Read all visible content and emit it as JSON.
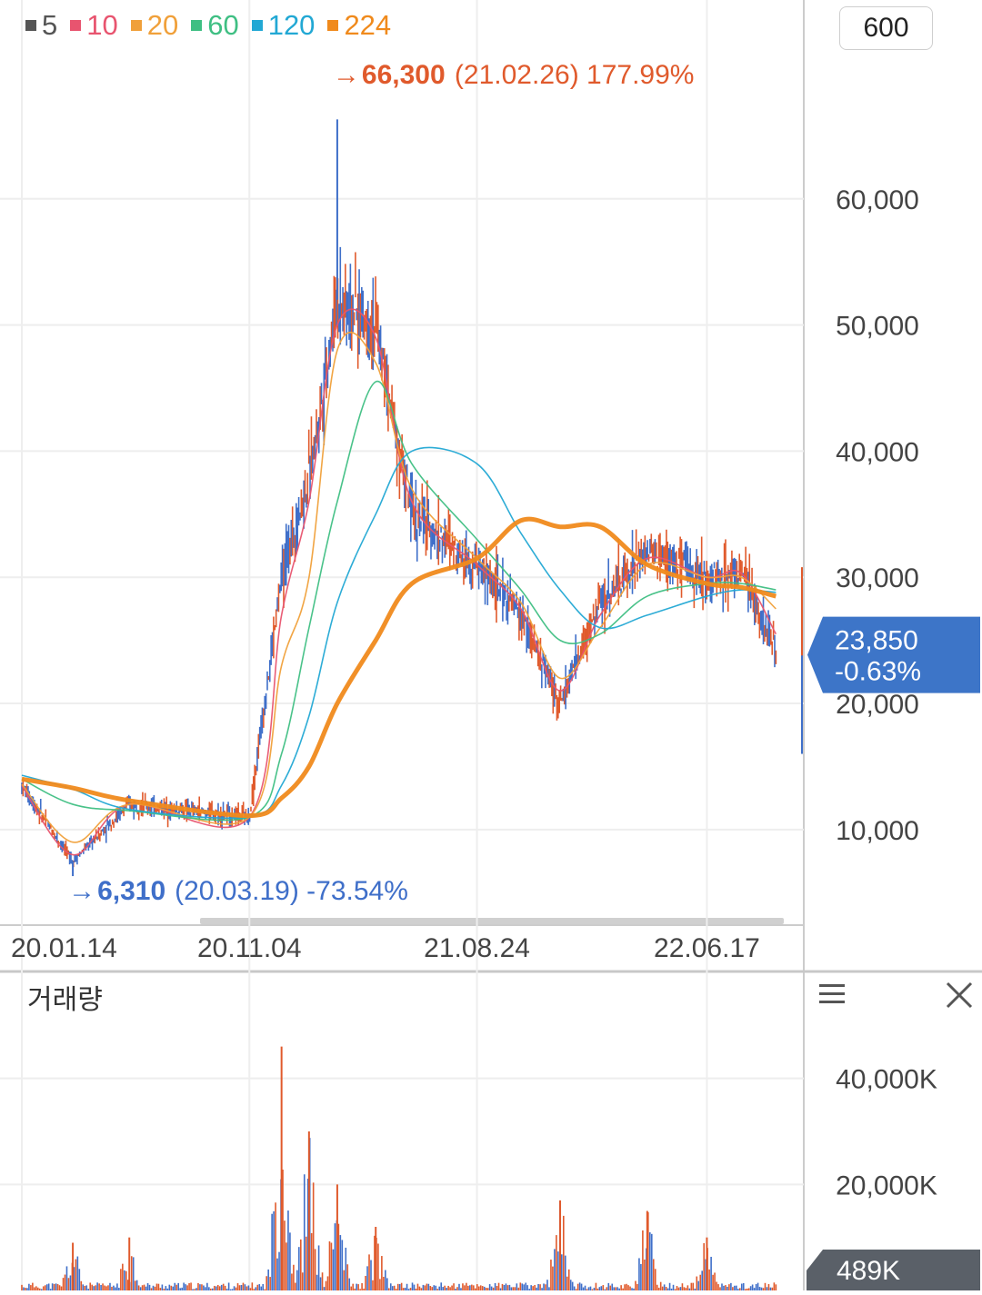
{
  "period_button": "600",
  "volume_title": "거래량",
  "legend": [
    {
      "label": "5",
      "color": "#555555"
    },
    {
      "label": "10",
      "color": "#e8546f"
    },
    {
      "label": "20",
      "color": "#f0a03a"
    },
    {
      "label": "60",
      "color": "#3fbf83"
    },
    {
      "label": "120",
      "color": "#22a8d4"
    },
    {
      "label": "224",
      "color": "#f08a1c"
    }
  ],
  "colors": {
    "up": "#e05a2c",
    "down": "#3f6fc9",
    "price_tag_bg": "#3d75c8",
    "volume_tag_bg": "#5a6068",
    "grid": "#eeeeee",
    "axis_text": "#444444"
  },
  "chart_data": [
    {
      "type": "line",
      "subtype": "candlestick_with_moving_averages",
      "x_tick_labels": [
        "20.01.14",
        "20.11.04",
        "21.08.24",
        "22.06.17"
      ],
      "y_tick_labels": [
        "10,000",
        "20,000",
        "30,000",
        "40,000",
        "50,000",
        "60,000"
      ],
      "ylim": [
        3000,
        70000
      ],
      "grid": true,
      "series": [
        {
          "name": "5",
          "x": [
            "20.01.14",
            "20.03.19",
            "20.06.01",
            "20.11.04",
            "20.12.15",
            "21.01.20",
            "21.02.26",
            "21.04.15",
            "21.06.01",
            "21.08.24",
            "21.10.20",
            "21.12.10",
            "22.02.01",
            "22.04.01",
            "22.06.17",
            "22.08.01",
            "22.09.15"
          ],
          "values": [
            13500,
            7500,
            12000,
            11000,
            30000,
            38000,
            52000,
            50000,
            35000,
            31000,
            27000,
            20000,
            28000,
            32000,
            30000,
            30500,
            24000
          ]
        },
        {
          "name": "10",
          "x": [
            "20.01.14",
            "20.03.19",
            "20.06.01",
            "20.11.04",
            "20.12.15",
            "21.01.20",
            "21.02.26",
            "21.04.15",
            "21.06.01",
            "21.08.24",
            "21.10.20",
            "21.12.10",
            "22.02.01",
            "22.04.01",
            "22.06.17",
            "22.08.01",
            "22.09.15"
          ],
          "values": [
            13500,
            8000,
            12000,
            11000,
            27000,
            36000,
            50000,
            49000,
            36000,
            31000,
            27500,
            21000,
            27000,
            31500,
            30000,
            30300,
            25500
          ]
        },
        {
          "name": "20",
          "x": [
            "20.01.14",
            "20.03.19",
            "20.06.01",
            "20.11.04",
            "20.12.15",
            "21.01.20",
            "21.02.26",
            "21.04.15",
            "21.06.01",
            "21.08.24",
            "21.10.20",
            "21.12.10",
            "22.02.01",
            "22.04.01",
            "22.06.17",
            "22.08.01",
            "22.09.15"
          ],
          "values": [
            13600,
            9000,
            12000,
            11000,
            23000,
            30000,
            48000,
            47000,
            37000,
            31500,
            28000,
            22000,
            26000,
            31000,
            30000,
            30000,
            27500
          ]
        },
        {
          "name": "60",
          "x": [
            "20.01.14",
            "20.03.19",
            "20.06.01",
            "20.11.04",
            "20.12.15",
            "21.01.20",
            "21.02.26",
            "21.04.15",
            "21.06.01",
            "21.08.24",
            "21.10.20",
            "21.12.10",
            "22.02.01",
            "22.04.01",
            "22.06.17",
            "22.08.01",
            "22.09.15"
          ],
          "values": [
            14000,
            12000,
            11500,
            11000,
            16000,
            26000,
            36000,
            45500,
            39000,
            33000,
            29000,
            25000,
            25500,
            28500,
            29500,
            29500,
            29000
          ]
        },
        {
          "name": "120",
          "x": [
            "20.01.14",
            "20.03.19",
            "20.06.01",
            "20.11.04",
            "20.12.15",
            "21.01.20",
            "21.02.26",
            "21.04.15",
            "21.06.01",
            "21.08.24",
            "21.10.20",
            "21.12.10",
            "22.02.01",
            "22.04.01",
            "22.06.17",
            "22.08.01",
            "22.09.15"
          ],
          "values": [
            14300,
            13200,
            11600,
            11000,
            13500,
            19000,
            28000,
            35000,
            40000,
            39000,
            33500,
            29000,
            26000,
            27000,
            28500,
            29000,
            28800
          ]
        },
        {
          "name": "224",
          "x": [
            "20.01.14",
            "20.03.19",
            "20.06.01",
            "20.11.04",
            "20.12.15",
            "21.01.20",
            "21.02.26",
            "21.04.15",
            "21.06.01",
            "21.08.24",
            "21.10.20",
            "21.12.10",
            "22.02.01",
            "22.04.01",
            "22.06.17",
            "22.08.01",
            "22.09.15"
          ],
          "values": [
            14000,
            13300,
            12300,
            11100,
            12500,
            15000,
            20000,
            25000,
            29500,
            31500,
            34500,
            34000,
            34000,
            31000,
            29500,
            29200,
            28500
          ]
        }
      ],
      "annotations": [
        {
          "label": "66,300",
          "detail": "(21.02.26) 177.99%",
          "x": "21.02.26",
          "y": 66300,
          "direction": "max"
        },
        {
          "label": "6,310",
          "detail": "(20.03.19) -73.54%",
          "x": "20.03.19",
          "y": 6310,
          "direction": "min"
        }
      ],
      "current_price": {
        "price": "23,850",
        "change": "-0.63%",
        "value": 23850
      }
    },
    {
      "type": "bar",
      "title": "거래량",
      "y_tick_labels": [
        "20,000K",
        "40,000K"
      ],
      "ylim": [
        0,
        48000
      ],
      "peaks": [
        {
          "x": "20.03.19",
          "value": 9000
        },
        {
          "x": "20.06.01",
          "value": 10000
        },
        {
          "x": "20.12.15",
          "value": 46000
        },
        {
          "x": "21.01.20",
          "value": 30000
        },
        {
          "x": "21.02.26",
          "value": 20000
        },
        {
          "x": "21.04.15",
          "value": 12000
        },
        {
          "x": "21.12.10",
          "value": 17000
        },
        {
          "x": "22.04.01",
          "value": 15000
        },
        {
          "x": "22.06.17",
          "value": 10000
        }
      ],
      "current_volume": "489K",
      "current_value": 489
    }
  ]
}
